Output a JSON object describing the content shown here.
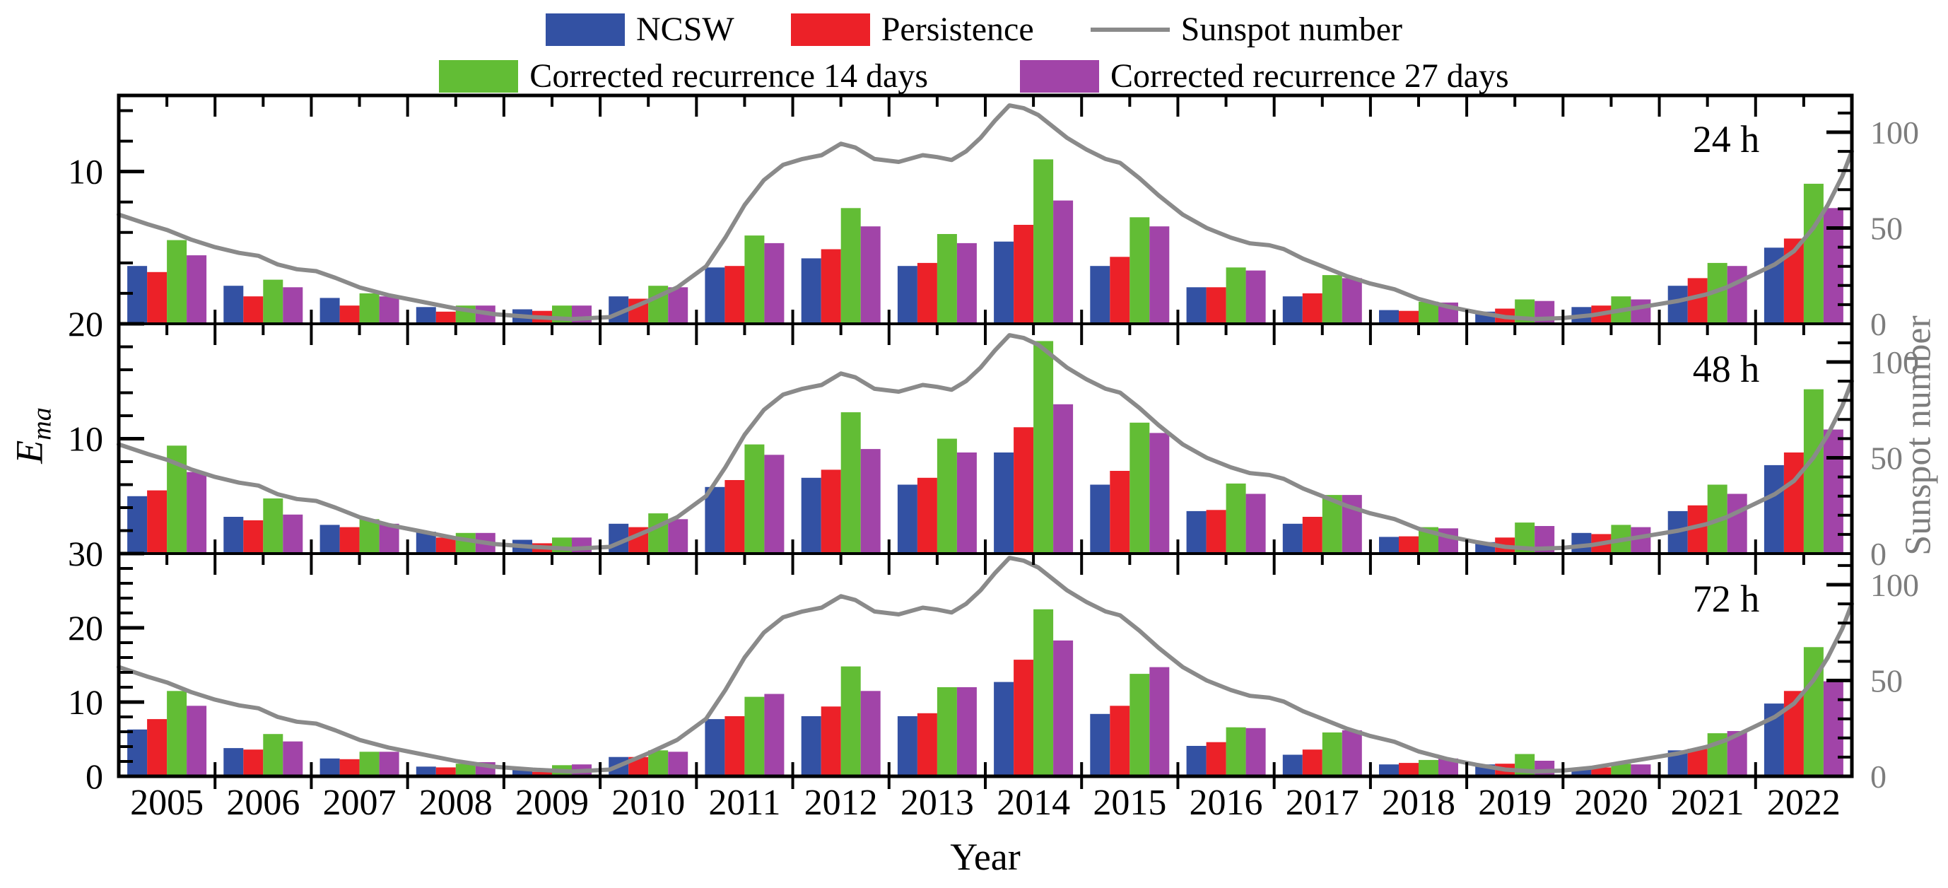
{
  "legend": {
    "items": [
      {
        "label": "NCSW",
        "color": "#3351a3",
        "marker": "box"
      },
      {
        "label": "Persistence",
        "color": "#ec2128",
        "marker": "box"
      },
      {
        "label": "Sunspot number",
        "color": "#8a8a8a",
        "marker": "line"
      },
      {
        "label": "Corrected recurrence 14 days",
        "color": "#62bd35",
        "marker": "box"
      },
      {
        "label": "Corrected recurrence 27 days",
        "color": "#a144a8",
        "marker": "box"
      }
    ]
  },
  "ylabel_left": {
    "main": "E",
    "sub": "ma"
  },
  "ylabel_right": "Sunspot number",
  "xlabel": "Year",
  "chart_data": {
    "type": "bar",
    "title": "",
    "xlabel": "Year",
    "ylabel": "Ema",
    "ylabel_right": "Sunspot number",
    "categories": [
      "2005",
      "2006",
      "2007",
      "2008",
      "2009",
      "2010",
      "2011",
      "2012",
      "2013",
      "2014",
      "2015",
      "2016",
      "2017",
      "2018",
      "2019",
      "2020",
      "2021",
      "2022"
    ],
    "series_names": [
      "NCSW",
      "Persistence",
      "Corrected recurrence 14 days",
      "Corrected recurrence 27 days"
    ],
    "colors": {
      "NCSW": "#3351a3",
      "Persistence": "#ec2128",
      "Corrected recurrence 14 days": "#62bd35",
      "Corrected recurrence 27 days": "#a144a8",
      "sunspot_line": "#8a8a8a",
      "right_axis_text": "#7d7d7d",
      "axis": "#000000"
    },
    "grid": false,
    "legend_position": "top-center",
    "panels": [
      {
        "label": "24 h",
        "ylim": [
          0,
          15
        ],
        "left_labels": [
          {
            "value": 10,
            "text": "10"
          }
        ],
        "series": [
          {
            "name": "NCSW",
            "values": [
              3.8,
              2.5,
              1.7,
              1.1,
              0.95,
              1.8,
              3.7,
              4.3,
              3.8,
              5.4,
              3.8,
              2.4,
              1.8,
              0.9,
              0.8,
              1.1,
              2.5,
              5.0
            ]
          },
          {
            "name": "Persistence",
            "values": [
              3.4,
              1.8,
              1.2,
              0.8,
              0.85,
              1.65,
              3.8,
              4.9,
              4.0,
              6.5,
              4.4,
              2.4,
              2.0,
              0.85,
              1.0,
              1.2,
              3.0,
              5.6
            ]
          },
          {
            "name": "Corrected recurrence 14 days",
            "values": [
              5.5,
              2.9,
              2.0,
              1.2,
              1.2,
              2.5,
              5.8,
              7.6,
              5.9,
              10.8,
              7.0,
              3.7,
              3.2,
              1.45,
              1.6,
              1.8,
              4.0,
              9.2
            ]
          },
          {
            "name": "Corrected recurrence 27 days",
            "values": [
              4.5,
              2.4,
              1.8,
              1.2,
              1.2,
              2.4,
              5.3,
              6.4,
              5.3,
              8.1,
              6.4,
              3.5,
              3.0,
              1.4,
              1.5,
              1.6,
              3.8,
              7.6
            ]
          }
        ]
      },
      {
        "label": "48 h",
        "ylim": [
          0,
          20
        ],
        "left_labels": [
          {
            "value": 10,
            "text": "10"
          },
          {
            "value": 20,
            "text": "20"
          }
        ],
        "series": [
          {
            "name": "NCSW",
            "values": [
              5.0,
              3.2,
              2.5,
              1.9,
              1.2,
              2.6,
              5.8,
              6.6,
              6.0,
              8.8,
              6.0,
              3.7,
              2.6,
              1.45,
              1.0,
              1.8,
              3.7,
              7.7
            ]
          },
          {
            "name": "Persistence",
            "values": [
              5.5,
              2.9,
              2.3,
              1.4,
              0.9,
              2.3,
              6.4,
              7.3,
              6.6,
              11.0,
              7.2,
              3.8,
              3.2,
              1.5,
              1.4,
              1.7,
              4.2,
              8.8
            ]
          },
          {
            "name": "Corrected recurrence 14 days",
            "values": [
              9.4,
              4.8,
              3.0,
              1.8,
              1.4,
              3.5,
              9.5,
              12.3,
              10.0,
              18.5,
              11.4,
              6.1,
              5.1,
              2.3,
              2.7,
              2.5,
              6.0,
              14.3
            ]
          },
          {
            "name": "Corrected recurrence 27 days",
            "values": [
              7.1,
              3.4,
              2.6,
              1.8,
              1.4,
              3.0,
              8.6,
              9.1,
              8.8,
              13.0,
              10.5,
              5.2,
              5.1,
              2.2,
              2.4,
              2.3,
              5.2,
              10.8
            ]
          }
        ]
      },
      {
        "label": "72 h",
        "ylim": [
          0,
          30
        ],
        "left_labels": [
          {
            "value": 0,
            "text": "0"
          },
          {
            "value": 10,
            "text": "10"
          },
          {
            "value": 20,
            "text": "20"
          },
          {
            "value": 30,
            "text": "30"
          }
        ],
        "series": [
          {
            "name": "NCSW",
            "values": [
              6.3,
              3.8,
              2.4,
              1.3,
              0.9,
              2.6,
              7.7,
              8.1,
              8.1,
              12.7,
              8.4,
              4.1,
              2.9,
              1.6,
              1.6,
              1.0,
              3.5,
              9.8
            ]
          },
          {
            "name": "Persistence",
            "values": [
              7.7,
              3.6,
              2.3,
              1.2,
              0.6,
              2.6,
              8.1,
              9.4,
              8.5,
              15.7,
              9.5,
              4.6,
              3.6,
              1.8,
              1.7,
              1.2,
              3.7,
              11.5
            ]
          },
          {
            "name": "Corrected recurrence 14 days",
            "values": [
              11.5,
              5.7,
              3.3,
              1.7,
              1.5,
              3.5,
              10.7,
              14.8,
              12.0,
              22.5,
              13.8,
              6.6,
              5.9,
              2.2,
              3.0,
              1.7,
              5.8,
              17.4
            ]
          },
          {
            "name": "Corrected recurrence 27 days",
            "values": [
              9.5,
              4.7,
              3.3,
              1.9,
              1.6,
              3.3,
              11.1,
              11.5,
              12.0,
              18.3,
              14.7,
              6.5,
              6.2,
              2.4,
              2.1,
              1.6,
              6.1,
              12.8
            ]
          }
        ]
      }
    ],
    "right_axis": {
      "ylim": [
        0,
        115
      ],
      "labels": [
        {
          "value": 0,
          "text": "0"
        },
        {
          "value": 50,
          "text": "50"
        },
        {
          "value": 100,
          "text": "100"
        }
      ],
      "minor_step": 10
    },
    "sunspot_line": {
      "name": "Sunspot number",
      "points": [
        [
          2004.5,
          57
        ],
        [
          2004.8,
          52
        ],
        [
          2005.0,
          49
        ],
        [
          2005.25,
          44
        ],
        [
          2005.5,
          40
        ],
        [
          2005.75,
          37
        ],
        [
          2005.95,
          35.5
        ],
        [
          2006.15,
          31
        ],
        [
          2006.35,
          28.5
        ],
        [
          2006.55,
          27.5
        ],
        [
          2006.75,
          24
        ],
        [
          2007.0,
          19
        ],
        [
          2007.3,
          15
        ],
        [
          2007.6,
          12
        ],
        [
          2008.0,
          8
        ],
        [
          2008.4,
          5
        ],
        [
          2008.8,
          3.5
        ],
        [
          2009.2,
          2.5
        ],
        [
          2009.6,
          3.5
        ],
        [
          2010.0,
          12
        ],
        [
          2010.3,
          19
        ],
        [
          2010.6,
          30
        ],
        [
          2010.8,
          45
        ],
        [
          2011.0,
          62
        ],
        [
          2011.2,
          75
        ],
        [
          2011.4,
          83
        ],
        [
          2011.6,
          86
        ],
        [
          2011.8,
          88
        ],
        [
          2012.0,
          94
        ],
        [
          2012.15,
          92
        ],
        [
          2012.35,
          86
        ],
        [
          2012.6,
          84.5
        ],
        [
          2012.85,
          88
        ],
        [
          2013.0,
          87
        ],
        [
          2013.15,
          85.5
        ],
        [
          2013.3,
          90
        ],
        [
          2013.45,
          97
        ],
        [
          2013.6,
          106
        ],
        [
          2013.75,
          114
        ],
        [
          2013.9,
          112.5
        ],
        [
          2014.05,
          109
        ],
        [
          2014.2,
          103
        ],
        [
          2014.35,
          97
        ],
        [
          2014.55,
          91
        ],
        [
          2014.75,
          86
        ],
        [
          2014.9,
          84
        ],
        [
          2015.1,
          76
        ],
        [
          2015.3,
          67
        ],
        [
          2015.55,
          57
        ],
        [
          2015.8,
          50
        ],
        [
          2016.05,
          45
        ],
        [
          2016.25,
          42
        ],
        [
          2016.45,
          41
        ],
        [
          2016.6,
          39
        ],
        [
          2016.8,
          34
        ],
        [
          2017.0,
          30
        ],
        [
          2017.25,
          25
        ],
        [
          2017.5,
          21
        ],
        [
          2017.75,
          18
        ],
        [
          2018.0,
          13
        ],
        [
          2018.3,
          9
        ],
        [
          2018.6,
          6
        ],
        [
          2018.9,
          3.5
        ],
        [
          2019.2,
          2.5
        ],
        [
          2019.5,
          3
        ],
        [
          2019.8,
          4.5
        ],
        [
          2020.1,
          7
        ],
        [
          2020.4,
          9.5
        ],
        [
          2020.7,
          12
        ],
        [
          2021.0,
          15.5
        ],
        [
          2021.2,
          19
        ],
        [
          2021.45,
          25
        ],
        [
          2021.7,
          31
        ],
        [
          2021.9,
          38
        ],
        [
          2022.1,
          50
        ],
        [
          2022.25,
          62
        ],
        [
          2022.4,
          77
        ],
        [
          2022.5,
          90
        ]
      ]
    }
  }
}
